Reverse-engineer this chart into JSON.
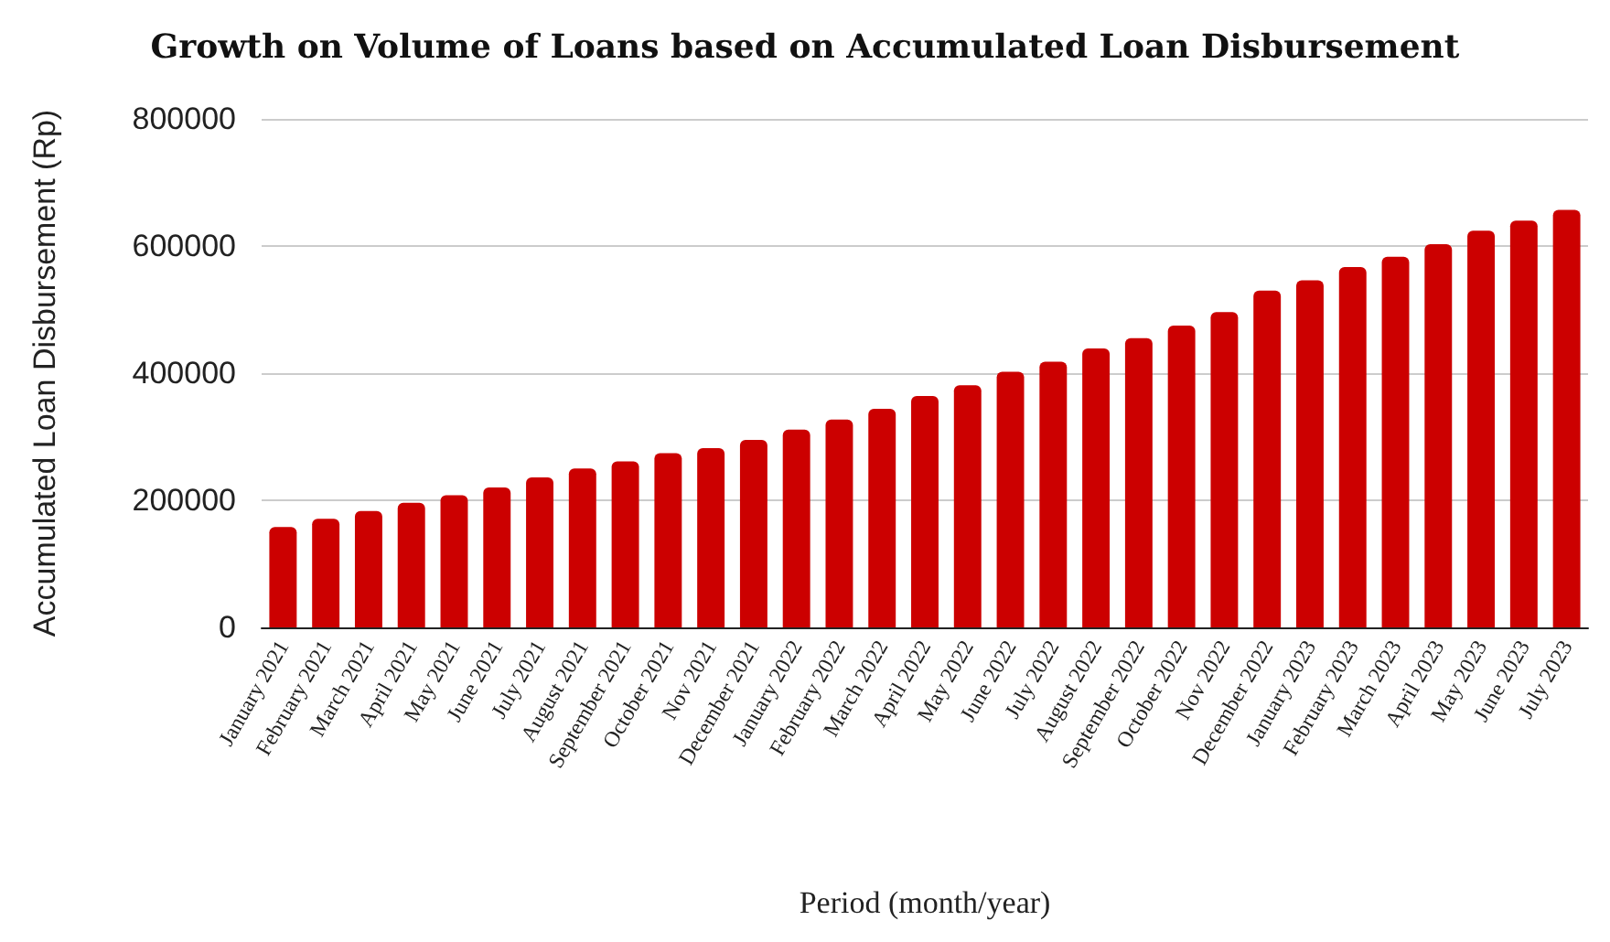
{
  "chart_data": {
    "type": "bar",
    "title": "Growth on Volume of Loans based on Accumulated Loan Disbursement",
    "xlabel": "Period (month/year)",
    "ylabel": "Accumulated Loan Disbursement (Rp)",
    "categories": [
      "January 2021",
      "February 2021",
      "March 2021",
      "April 2021",
      "May 2021",
      "June 2021",
      "July 2021",
      "August 2021",
      "September 2021",
      "October 2021",
      "Nov 2021",
      "December 2021",
      "January 2022",
      "February 2022",
      "March 2022",
      "April 2022",
      "May 2022",
      "June 2022",
      "July 2022",
      "August 2022",
      "September 2022",
      "October 2022",
      "Nov 2022",
      "December 2022",
      "January 2023",
      "February 2023",
      "March 2023",
      "April 2023",
      "May 2023",
      "June 2023",
      "July 2023"
    ],
    "values": [
      158000,
      171000,
      183000,
      196000,
      208000,
      220000,
      236000,
      250000,
      261000,
      274000,
      282000,
      295000,
      311000,
      327000,
      344000,
      364000,
      381000,
      402000,
      418000,
      439000,
      455000,
      475000,
      496000,
      530000,
      546000,
      567000,
      583000,
      603000,
      624000,
      640000,
      657000
    ],
    "color": "#cc0000",
    "ylim": [
      0,
      800000
    ],
    "yticks": [
      0,
      200000,
      400000,
      600000,
      800000
    ],
    "grid": "y"
  }
}
